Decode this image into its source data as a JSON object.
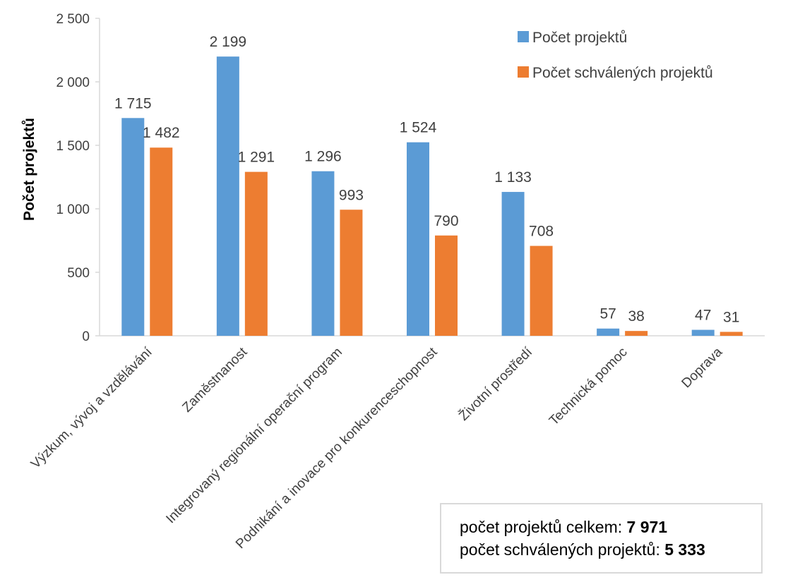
{
  "chart_data": {
    "type": "bar",
    "ylabel": "Počet projektů",
    "ylim": [
      0,
      2500
    ],
    "y_ticks": [
      0,
      500,
      1000,
      1500,
      2000,
      2500
    ],
    "y_tick_labels": [
      "0",
      "500",
      "1 000",
      "1 500",
      "2 000",
      "2 500"
    ],
    "categories": [
      "Výzkum, vývoj a vzdělávání",
      "Zaměstnanost",
      "Integrovaný regionální operační program",
      "Podnikání a inovace pro konkurenceschopnost",
      "Životní prostředí",
      "Technická pomoc",
      "Doprava"
    ],
    "series": [
      {
        "name": "Počet projektů",
        "color": "#5b9bd5",
        "values": [
          1715,
          2199,
          1296,
          1524,
          1133,
          57,
          47
        ],
        "labels": [
          "1 715",
          "2 199",
          "1 296",
          "1 524",
          "1 133",
          "57",
          "47"
        ]
      },
      {
        "name": "Počet schválených projektů",
        "color": "#ed7d31",
        "values": [
          1482,
          1291,
          993,
          790,
          708,
          38,
          31
        ],
        "labels": [
          "1 482",
          "1 291",
          "993",
          "790",
          "708",
          "38",
          "31"
        ]
      }
    ],
    "legend_position": "top-right",
    "grid": false
  },
  "summary": {
    "line1_label": "počet projektů celkem: ",
    "line1_value": "7 971",
    "line2_label": "počet schválených projektů: ",
    "line2_value": "5 333"
  }
}
